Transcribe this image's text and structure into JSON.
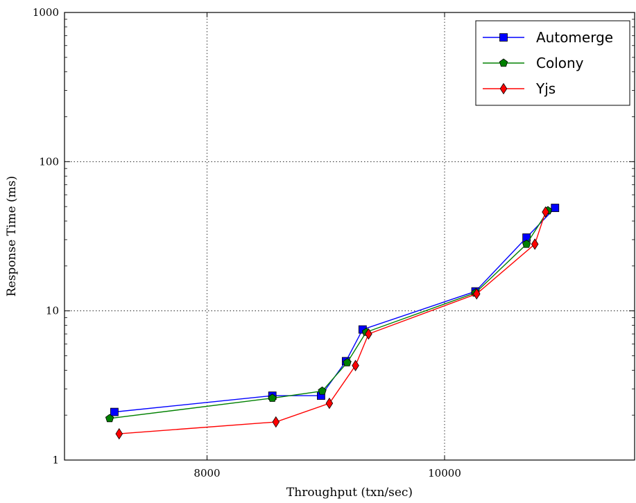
{
  "chart_data": {
    "type": "line",
    "xlabel": "Throughput (txn/sec)",
    "ylabel": "Response Time (ms)",
    "xlim": [
      6800,
      11600
    ],
    "ylim": [
      1,
      1000
    ],
    "yscale": "log",
    "grid": true,
    "legend_position": "top-right",
    "x_ticks": [
      8000,
      10000
    ],
    "x_tick_labels": [
      "8000",
      "10000"
    ],
    "y_ticks": [
      1,
      10,
      100,
      1000
    ],
    "y_tick_labels": [
      "1",
      "10",
      "100",
      "1000"
    ],
    "series": [
      {
        "name": "Automerge",
        "color": "#0000ff",
        "marker": "square",
        "x": [
          7220,
          8550,
          8960,
          9170,
          9310,
          10260,
          10690,
          10930
        ],
        "y": [
          2.1,
          2.7,
          2.7,
          4.6,
          7.5,
          13.5,
          31,
          49
        ]
      },
      {
        "name": "Colony",
        "color": "#008000",
        "marker": "pentagon",
        "x": [
          7180,
          8550,
          8970,
          9180,
          9340,
          10260,
          10690,
          10870
        ],
        "y": [
          1.9,
          2.6,
          2.9,
          4.5,
          7.2,
          13.2,
          28,
          47
        ]
      },
      {
        "name": "Yjs",
        "color": "#ff0000",
        "marker": "diamond",
        "x": [
          7260,
          8580,
          9030,
          9250,
          9360,
          10270,
          10760,
          10850
        ],
        "y": [
          1.5,
          1.8,
          2.4,
          4.3,
          7.0,
          13.0,
          28,
          46
        ]
      }
    ]
  }
}
